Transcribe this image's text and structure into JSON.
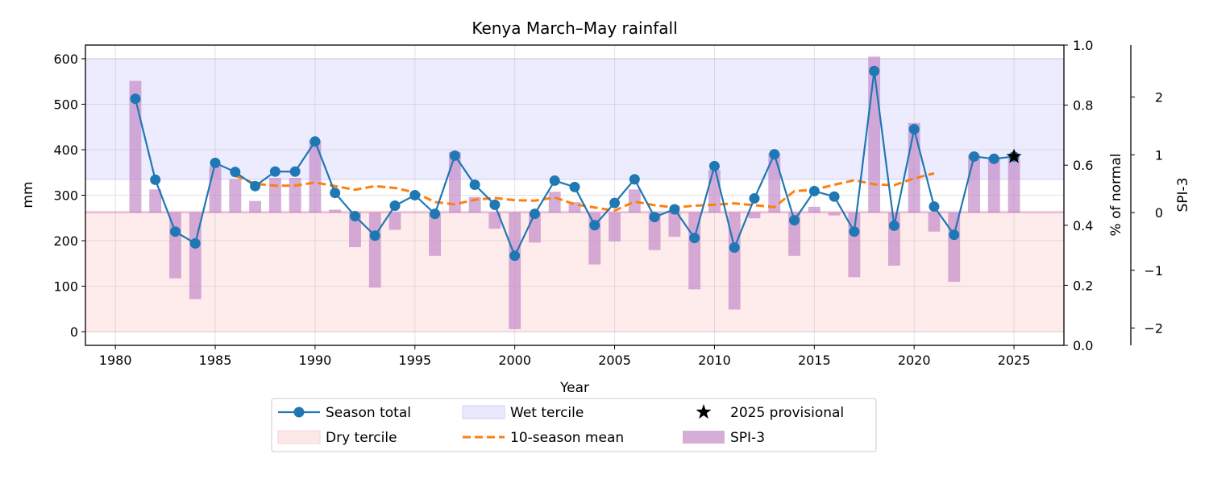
{
  "chart_data": {
    "type": "line",
    "title": "Kenya March–May rainfall",
    "xlabel": "Year",
    "ylabel": "mm",
    "y2label": "% of normal",
    "y3label": "SPI-3",
    "xlim": [
      1978.5,
      2027.5
    ],
    "ylim": [
      -30,
      630
    ],
    "y2lim": [
      0.0,
      1.0
    ],
    "y3lim": [
      -2.3,
      2.9
    ],
    "xticks": [
      1980,
      1985,
      1990,
      1995,
      2000,
      2005,
      2010,
      2015,
      2020,
      2025
    ],
    "yticks": [
      0,
      100,
      200,
      300,
      400,
      500,
      600
    ],
    "y2ticks": [
      0.0,
      0.2,
      0.4,
      0.6,
      0.8,
      1.0
    ],
    "y3ticks": [
      -2,
      -1,
      0,
      1,
      2
    ],
    "grid": true,
    "legend_position": "below",
    "wet_tercile": [
      335,
      600
    ],
    "dry_tercile": [
      0,
      265
    ],
    "years": [
      1981,
      1982,
      1983,
      1984,
      1985,
      1986,
      1987,
      1988,
      1989,
      1990,
      1991,
      1992,
      1993,
      1994,
      1995,
      1996,
      1997,
      1998,
      1999,
      2000,
      2001,
      2002,
      2003,
      2004,
      2005,
      2006,
      2007,
      2008,
      2009,
      2010,
      2011,
      2012,
      2013,
      2014,
      2015,
      2016,
      2017,
      2018,
      2019,
      2020,
      2021,
      2022,
      2023,
      2024,
      2025
    ],
    "series": [
      {
        "name": "Season total",
        "color": "#1f77b4",
        "values": [
          512,
          334,
          220,
          194,
          371,
          351,
          320,
          352,
          352,
          418,
          305,
          254,
          211,
          277,
          300,
          259,
          387,
          323,
          279,
          167,
          259,
          332,
          318,
          234,
          283,
          335,
          252,
          269,
          206,
          364,
          185,
          293,
          390,
          245,
          309,
          297,
          220,
          573,
          233,
          445,
          275,
          213,
          385,
          380,
          385
        ]
      },
      {
        "name": "10-season mean",
        "color": "#ff7f0e",
        "style": "dashed",
        "years": [
          1986,
          1987,
          1988,
          1989,
          1990,
          1991,
          1992,
          1993,
          1994,
          1995,
          1996,
          1997,
          1998,
          1999,
          2000,
          2001,
          2002,
          2003,
          2004,
          2005,
          2006,
          2007,
          2008,
          2009,
          2010,
          2011,
          2012,
          2013,
          2014,
          2015,
          2016,
          2017,
          2018,
          2019,
          2020,
          2021
        ],
        "values": [
          343,
          325,
          321,
          321,
          328,
          320,
          312,
          320,
          316,
          306,
          285,
          280,
          290,
          294,
          289,
          288,
          295,
          280,
          273,
          266,
          286,
          278,
          273,
          277,
          279,
          282,
          278,
          274,
          309,
          312,
          323,
          333,
          324,
          322,
          337,
          348
        ]
      },
      {
        "name": "SPI-3",
        "color": "#c38bc9",
        "values": [
          2.28,
          0.4,
          -1.14,
          -1.5,
          0.8,
          0.58,
          0.2,
          0.6,
          0.6,
          1.25,
          0.05,
          -0.6,
          -1.3,
          -0.3,
          0.0,
          -0.75,
          1.05,
          0.27,
          -0.28,
          -2.02,
          -0.52,
          0.36,
          0.18,
          -0.9,
          -0.5,
          0.4,
          -0.65,
          -0.42,
          -1.33,
          0.74,
          -1.68,
          -0.1,
          1.03,
          -0.75,
          0.1,
          -0.05,
          -1.12,
          2.7,
          -0.92,
          1.55,
          -0.33,
          -1.2,
          1.0,
          0.96,
          0.93
        ]
      }
    ],
    "provisional": {
      "name": "2025 provisional",
      "year": 2025,
      "value": 385
    }
  },
  "legend": {
    "items": [
      {
        "label": "Season total",
        "kind": "line-marker",
        "color": "#1f77b4"
      },
      {
        "label": "Dry tercile",
        "kind": "patch",
        "color": "#fde8e8"
      },
      {
        "label": "Wet tercile",
        "kind": "patch",
        "color": "#e9e9fd"
      },
      {
        "label": "10-season mean",
        "kind": "dashed",
        "color": "#ff7f0e"
      },
      {
        "label": "2025 provisional",
        "kind": "star",
        "color": "#000000"
      },
      {
        "label": "SPI-3",
        "kind": "patch",
        "color": "#d5aed8"
      }
    ]
  }
}
